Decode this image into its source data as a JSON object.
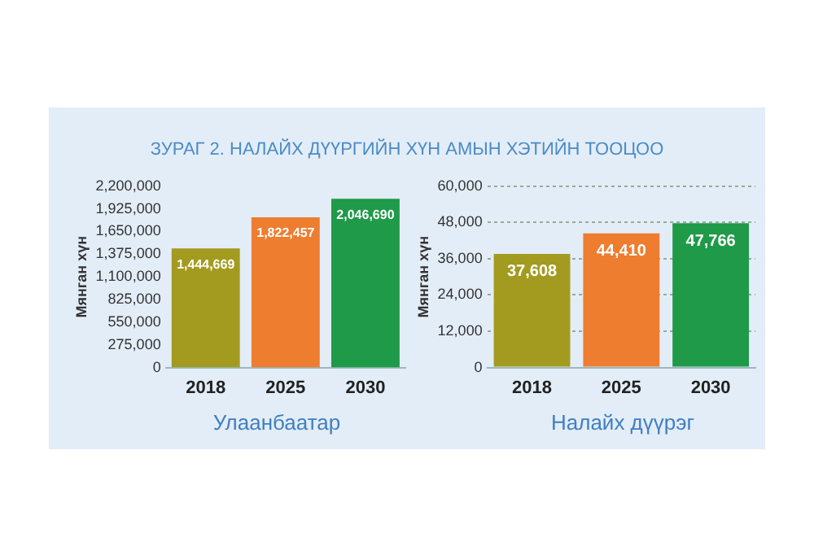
{
  "chart_data": [
    {
      "type": "bar",
      "title": "ЗУРАГ 2. НАЛАЙХ ДҮҮРГИЙН ХҮН АМЫН ХЭТИЙН ТООЦОО",
      "xlabel": "Улаанбаатар",
      "ylabel": "Мянган хүн",
      "categories": [
        "2018",
        "2025",
        "2030"
      ],
      "values": [
        1444669,
        1822457,
        2046690
      ],
      "colors": [
        "#a39b1f",
        "#ee7d30",
        "#1f9a48"
      ],
      "ylim": [
        0,
        2200000
      ],
      "yticks": [
        {
          "value": 0,
          "label": "0"
        },
        {
          "value": 275000,
          "label": "275,000"
        },
        {
          "value": 550000,
          "label": "550,000"
        },
        {
          "value": 825000,
          "label": "825,000"
        },
        {
          "value": 1100000,
          "label": "1,100,000"
        },
        {
          "value": 1375000,
          "label": "1,375,000"
        },
        {
          "value": 1650000,
          "label": "1,650,000"
        },
        {
          "value": 1925000,
          "label": "1,925,000"
        },
        {
          "value": 2200000,
          "label": "2,200,000"
        }
      ],
      "grid": false,
      "legend": false,
      "value_labels": [
        "1,444,669",
        "1,822,457",
        "2,046,690"
      ]
    },
    {
      "type": "bar",
      "xlabel": "Налайх дүүрэг",
      "ylabel": "Мянган хүн",
      "categories": [
        "2018",
        "2025",
        "2030"
      ],
      "values": [
        37608,
        44410,
        47766
      ],
      "colors": [
        "#a39b1f",
        "#ee7d30",
        "#1f9a48"
      ],
      "ylim": [
        0,
        60000
      ],
      "yticks": [
        {
          "value": 0,
          "label": "0"
        },
        {
          "value": 12000,
          "label": "12,000"
        },
        {
          "value": 24000,
          "label": "24,000"
        },
        {
          "value": 36000,
          "label": "36,000"
        },
        {
          "value": 48000,
          "label": "48,000"
        },
        {
          "value": 60000,
          "label": "60,000"
        }
      ],
      "grid": "y",
      "legend": false,
      "value_labels": [
        "37,608",
        "44,410",
        "47,766"
      ]
    }
  ]
}
